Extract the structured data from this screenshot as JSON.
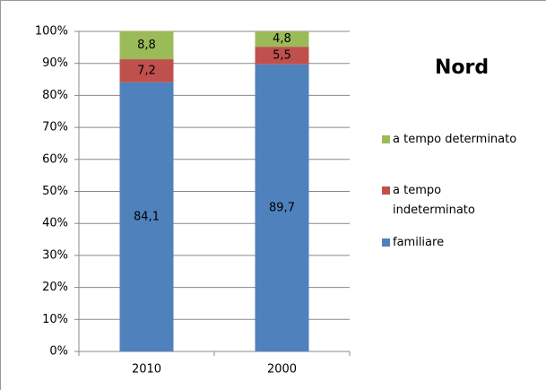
{
  "chart_data": {
    "type": "stacked_bar",
    "title": "Nord",
    "categories": [
      "2010",
      "2000"
    ],
    "series": [
      {
        "name": "familiare",
        "color": "#4f81bd",
        "values": [
          84.1,
          89.7
        ],
        "value_labels": [
          "84,1",
          "89,7"
        ]
      },
      {
        "name": "a tempo indeterminato",
        "color": "#c0504d",
        "values": [
          7.2,
          5.5
        ],
        "value_labels": [
          "7,2",
          "5,5"
        ]
      },
      {
        "name": "a tempo determinato",
        "color": "#9bbb59",
        "values": [
          8.8,
          4.8
        ],
        "value_labels": [
          "8,8",
          "4,8"
        ]
      }
    ],
    "ylim": [
      0,
      100
    ],
    "yticks": [
      {
        "value": 0,
        "label": "0%"
      },
      {
        "value": 10,
        "label": "10%"
      },
      {
        "value": 20,
        "label": "20%"
      },
      {
        "value": 30,
        "label": "30%"
      },
      {
        "value": 40,
        "label": "40%"
      },
      {
        "value": 50,
        "label": "50%"
      },
      {
        "value": 60,
        "label": "60%"
      },
      {
        "value": 70,
        "label": "70%"
      },
      {
        "value": 80,
        "label": "80%"
      },
      {
        "value": 90,
        "label": "90%"
      },
      {
        "value": 100,
        "label": "100%"
      }
    ],
    "grid": true,
    "legend": "right"
  }
}
